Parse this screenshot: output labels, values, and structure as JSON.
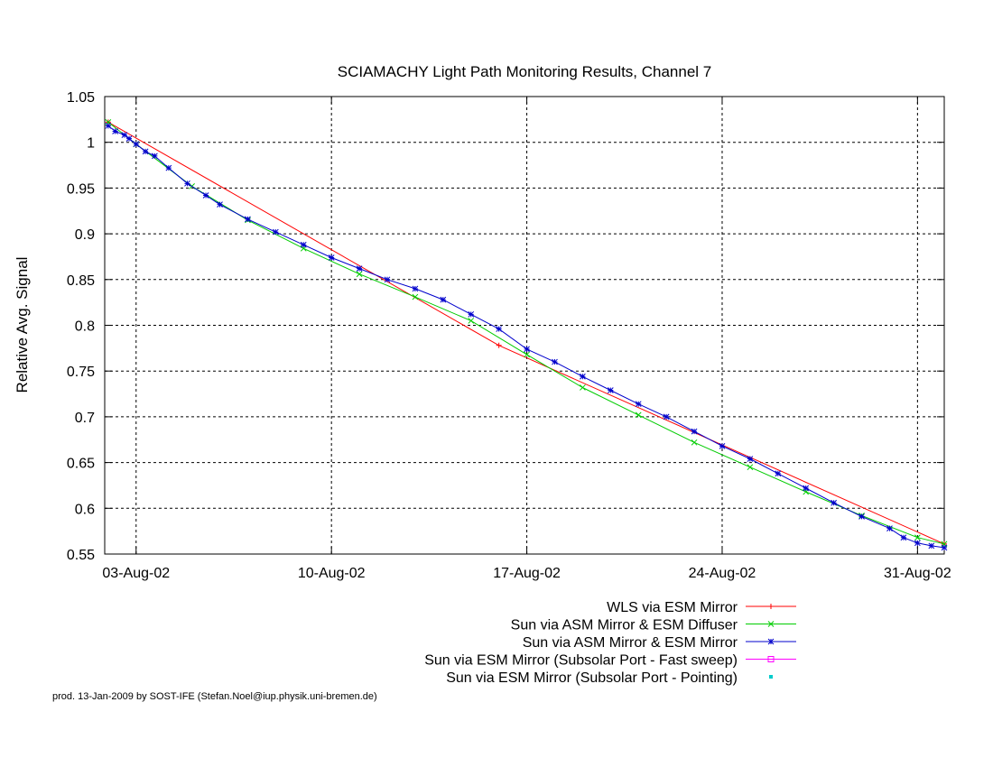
{
  "chart_data": {
    "type": "line",
    "title": "SCIAMACHY Light Path Monitoring Results, Channel 7",
    "xlabel": "",
    "ylabel": "Relative Avg. Signal",
    "x_ticks": [
      "03-Aug-02",
      "10-Aug-02",
      "17-Aug-02",
      "24-Aug-02",
      "31-Aug-02"
    ],
    "y_ticks": [
      "0.55",
      "0.6",
      "0.65",
      "0.7",
      "0.75",
      "0.8",
      "0.85",
      "0.9",
      "0.95",
      "1",
      "1.05"
    ],
    "xlim": [
      "2002-08-01T21:00",
      "2002-08-31T23:00"
    ],
    "ylim": [
      0.55,
      1.05
    ],
    "grid": true,
    "legend_position": "below-right",
    "series": [
      {
        "name": "WLS via ESM Mirror",
        "color": "#ff0000",
        "marker": "plus",
        "x": [
          "2002-08-02",
          "2002-08-16",
          "2002-08-31T23:00"
        ],
        "y": [
          1.022,
          0.778,
          0.561
        ]
      },
      {
        "name": "Sun via ASM Mirror & ESM Diffuser",
        "color": "#00cc00",
        "marker": "cross",
        "x": [
          "2002-08-02",
          "2002-08-03",
          "2002-08-05",
          "2002-08-07",
          "2002-08-09",
          "2002-08-11",
          "2002-08-13",
          "2002-08-15",
          "2002-08-17",
          "2002-08-19",
          "2002-08-21",
          "2002-08-23",
          "2002-08-25",
          "2002-08-27",
          "2002-08-29",
          "2002-08-31",
          "2002-08-31T23:00"
        ],
        "y": [
          1.022,
          0.998,
          0.952,
          0.915,
          0.884,
          0.856,
          0.831,
          0.805,
          0.768,
          0.732,
          0.702,
          0.672,
          0.645,
          0.618,
          0.592,
          0.568,
          0.561
        ]
      },
      {
        "name": "Sun via ASM Mirror & ESM Mirror",
        "color": "#0000cc",
        "marker": "star",
        "x": [
          "2002-08-02",
          "2002-08-02T06:00",
          "2002-08-02T14:00",
          "2002-08-02T18:00",
          "2002-08-03",
          "2002-08-03T08:00",
          "2002-08-03T16:00",
          "2002-08-04T04:00",
          "2002-08-04T20:00",
          "2002-08-05T12:00",
          "2002-08-06",
          "2002-08-07",
          "2002-08-08",
          "2002-08-09",
          "2002-08-10",
          "2002-08-11",
          "2002-08-12",
          "2002-08-13",
          "2002-08-14",
          "2002-08-15",
          "2002-08-16",
          "2002-08-17",
          "2002-08-18",
          "2002-08-19",
          "2002-08-20",
          "2002-08-21",
          "2002-08-22",
          "2002-08-23",
          "2002-08-24",
          "2002-08-25",
          "2002-08-26",
          "2002-08-27",
          "2002-08-28",
          "2002-08-29",
          "2002-08-30",
          "2002-08-30T12:00",
          "2002-08-31",
          "2002-08-31T12:00",
          "2002-08-31T23:00"
        ],
        "y": [
          1.018,
          1.012,
          1.008,
          1.004,
          0.998,
          0.99,
          0.985,
          0.972,
          0.955,
          0.942,
          0.932,
          0.916,
          0.902,
          0.888,
          0.874,
          0.862,
          0.85,
          0.84,
          0.828,
          0.812,
          0.796,
          0.774,
          0.76,
          0.744,
          0.729,
          0.714,
          0.7,
          0.684,
          0.668,
          0.654,
          0.638,
          0.622,
          0.606,
          0.591,
          0.578,
          0.568,
          0.562,
          0.559,
          0.557
        ]
      },
      {
        "name": "Sun via ESM Mirror (Subsolar Port - Fast sweep)",
        "color": "#ff00ff",
        "marker": "square",
        "x": [],
        "y": []
      },
      {
        "name": "Sun via ESM Mirror (Subsolar Port - Pointing)",
        "color": "#00cccc",
        "marker": "dot",
        "x": [],
        "y": []
      }
    ]
  },
  "footer": {
    "credit": "prod. 13-Jan-2009 by SOST-IFE (Stefan.Noel@iup.physik.uni-bremen.de)"
  }
}
